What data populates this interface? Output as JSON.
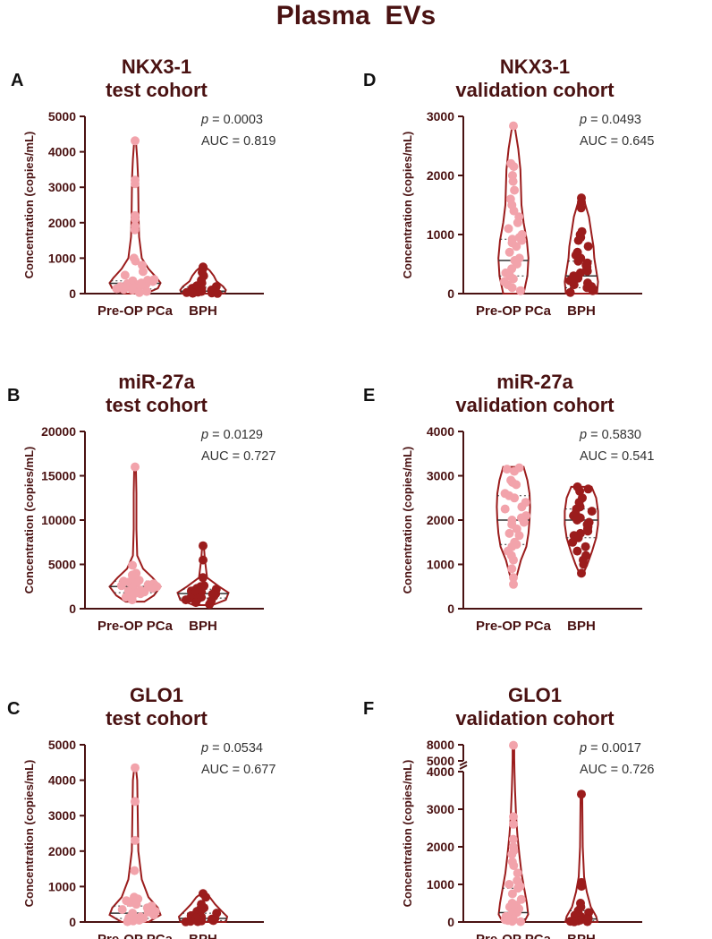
{
  "figure_title": "Plasma  EVs",
  "colors": {
    "dark": "#9b1c1c",
    "light": "#f2a3ab",
    "axis": "#4a1212"
  },
  "chart_data": [
    {
      "label": "A",
      "title_line1": "NKX3-1",
      "title_line2": "test cohort",
      "type": "violin",
      "ylabel": "Concentration (copies/mL)",
      "ylim": [
        0,
        5000
      ],
      "yticks": [
        "0",
        "1000",
        "2000",
        "3000",
        "4000",
        "5000"
      ],
      "categories": [
        "Pre-OP PCa",
        "BPH"
      ],
      "p_label": "p",
      "p_value": " = 0.0003",
      "auc_text": "AUC = 0.819",
      "series": [
        {
          "name": "Pre-OP PCa",
          "color": "light",
          "median": 290,
          "q1": 130,
          "q3": 360,
          "violin": [
            [
              0,
              40
            ],
            [
              150,
              85
            ],
            [
              300,
              95
            ],
            [
              450,
              80
            ],
            [
              700,
              50
            ],
            [
              1000,
              25
            ],
            [
              1600,
              15
            ],
            [
              2200,
              13
            ],
            [
              2800,
              12
            ],
            [
              3300,
              11
            ],
            [
              3800,
              8
            ],
            [
              4320,
              3
            ]
          ],
          "values": [
            4310,
            3200,
            3100,
            2200,
            2100,
            1900,
            1800,
            1000,
            920,
            800,
            620,
            520,
            400,
            380,
            360,
            340,
            320,
            300,
            280,
            260,
            250,
            240,
            220,
            200,
            180,
            160,
            140,
            120,
            100,
            60,
            30
          ]
        },
        {
          "name": "BPH",
          "color": "dark",
          "median": 70,
          "q1": 30,
          "q3": 180,
          "violin": [
            [
              0,
              80
            ],
            [
              100,
              85
            ],
            [
              200,
              75
            ],
            [
              350,
              50
            ],
            [
              500,
              40
            ],
            [
              650,
              25
            ],
            [
              780,
              5
            ]
          ],
          "values": [
            750,
            720,
            600,
            500,
            380,
            300,
            220,
            200,
            180,
            150,
            140,
            120,
            110,
            100,
            90,
            80,
            70,
            60,
            50,
            40,
            30,
            20,
            10,
            5
          ]
        }
      ]
    },
    {
      "label": "D",
      "title_line1": "NKX3-1",
      "title_line2": "validation cohort",
      "type": "violin",
      "ylabel": "Concentration (copies/mL)",
      "ylim": [
        0,
        3000
      ],
      "yticks": [
        "0",
        "1000",
        "2000",
        "3000"
      ],
      "categories": [
        "Pre-OP PCa",
        "BPH"
      ],
      "p_label": "p",
      "p_value": " = 0.0493",
      "auc_text": "AUC = 0.645",
      "series": [
        {
          "name": "Pre-OP PCa",
          "color": "light",
          "median": 560,
          "q1": 300,
          "q3": 920,
          "violin": [
            [
              0,
              38
            ],
            [
              300,
              52
            ],
            [
              600,
              56
            ],
            [
              900,
              50
            ],
            [
              1200,
              38
            ],
            [
              1500,
              30
            ],
            [
              1800,
              28
            ],
            [
              2100,
              26
            ],
            [
              2450,
              18
            ],
            [
              2850,
              4
            ]
          ],
          "values": [
            2840,
            2200,
            2150,
            2000,
            1900,
            1750,
            1600,
            1500,
            1400,
            1300,
            1200,
            1100,
            1000,
            950,
            920,
            900,
            860,
            800,
            700,
            600,
            560,
            500,
            420,
            350,
            300,
            250,
            200,
            150,
            100,
            50
          ]
        },
        {
          "name": "BPH",
          "color": "dark",
          "median": 300,
          "q1": 100,
          "q3": 550,
          "violin": [
            [
              0,
              58
            ],
            [
              200,
              62
            ],
            [
              400,
              55
            ],
            [
              600,
              48
            ],
            [
              800,
              45
            ],
            [
              1000,
              38
            ],
            [
              1300,
              28
            ],
            [
              1550,
              12
            ],
            [
              1650,
              3
            ]
          ],
          "values": [
            1620,
            1550,
            1450,
            1050,
            1000,
            950,
            900,
            800,
            700,
            650,
            600,
            550,
            520,
            480,
            450,
            420,
            380,
            350,
            300,
            260,
            220,
            180,
            150,
            120,
            100,
            80,
            50,
            20
          ]
        }
      ]
    },
    {
      "label": "B",
      "title_line1": "miR-27a",
      "title_line2": "test cohort",
      "type": "violin",
      "ylabel": "Concentration (copies/mL)",
      "ylim": [
        0,
        20000
      ],
      "yticks": [
        "0",
        "5000",
        "10000",
        "15000",
        "20000"
      ],
      "categories": [
        "Pre-OP PCa",
        "BPH"
      ],
      "p_label": "p",
      "p_value": " = 0.0129",
      "auc_text": "AUC = 0.727",
      "series": [
        {
          "name": "Pre-OP PCa",
          "color": "light",
          "median": 2500,
          "q1": 1800,
          "q3": 3100,
          "violin": [
            [
              800,
              35
            ],
            [
              1500,
              70
            ],
            [
              2500,
              95
            ],
            [
              3500,
              65
            ],
            [
              4500,
              30
            ],
            [
              6000,
              8
            ],
            [
              9000,
              5
            ],
            [
              13000,
              5
            ],
            [
              16100,
              3
            ]
          ],
          "values": [
            16000,
            4900,
            4000,
            3800,
            3600,
            3200,
            3100,
            3000,
            2900,
            2800,
            2700,
            2600,
            2500,
            2450,
            2400,
            2300,
            2200,
            2100,
            2000,
            1900,
            1800,
            1700,
            1500,
            1300,
            1000
          ]
        },
        {
          "name": "BPH",
          "color": "dark",
          "median": 1700,
          "q1": 1200,
          "q3": 2200,
          "violin": [
            [
              400,
              35
            ],
            [
              1000,
              85
            ],
            [
              1800,
              95
            ],
            [
              2500,
              60
            ],
            [
              3500,
              15
            ],
            [
              5500,
              7
            ],
            [
              7100,
              3
            ]
          ],
          "values": [
            7100,
            5500,
            3500,
            2600,
            2500,
            2400,
            2300,
            2200,
            2100,
            2000,
            1900,
            1800,
            1700,
            1650,
            1600,
            1500,
            1400,
            1300,
            1200,
            1100,
            1000,
            900,
            700,
            500
          ]
        }
      ]
    },
    {
      "label": "E",
      "title_line1": "miR-27a",
      "title_line2": "validation cohort",
      "type": "violin",
      "ylabel": "Concentration (copies/mL)",
      "ylim": [
        0,
        4000
      ],
      "yticks": [
        "0",
        "1000",
        "2000",
        "3000",
        "4000"
      ],
      "categories": [
        "Pre-OP PCa",
        "BPH"
      ],
      "p_label": "p",
      "p_value": " = 0.5830",
      "auc_text": "AUC = 0.541",
      "series": [
        {
          "name": "Pre-OP PCa",
          "color": "light",
          "median": 2000,
          "q1": 1450,
          "q3": 2550,
          "violin": [
            [
              520,
              3
            ],
            [
              800,
              15
            ],
            [
              1100,
              28
            ],
            [
              1400,
              48
            ],
            [
              1700,
              56
            ],
            [
              2000,
              60
            ],
            [
              2300,
              62
            ],
            [
              2600,
              60
            ],
            [
              2900,
              52
            ],
            [
              3200,
              38
            ]
          ],
          "values": [
            3180,
            3150,
            3100,
            2900,
            2850,
            2800,
            2600,
            2550,
            2500,
            2400,
            2300,
            2250,
            2100,
            2050,
            2000,
            1950,
            1900,
            1800,
            1700,
            1650,
            1500,
            1450,
            1400,
            1300,
            1200,
            1100,
            900,
            700,
            550
          ]
        },
        {
          "name": "BPH",
          "color": "dark",
          "median": 2000,
          "q1": 1600,
          "q3": 2250,
          "violin": [
            [
              750,
              4
            ],
            [
              1000,
              22
            ],
            [
              1300,
              40
            ],
            [
              1600,
              55
            ],
            [
              1900,
              62
            ],
            [
              2200,
              62
            ],
            [
              2500,
              55
            ],
            [
              2750,
              38
            ]
          ],
          "values": [
            2750,
            2700,
            2650,
            2500,
            2400,
            2300,
            2250,
            2200,
            2150,
            2100,
            2050,
            2000,
            1950,
            1900,
            1850,
            1800,
            1750,
            1700,
            1650,
            1600,
            1500,
            1400,
            1300,
            1200,
            1100,
            1000,
            800
          ]
        }
      ]
    },
    {
      "label": "C",
      "title_line1": "GLO1",
      "title_line2": "test cohort",
      "type": "violin",
      "ylabel": "Concentration (copies/mL)",
      "ylim": [
        0,
        5000
      ],
      "yticks": [
        "0",
        "1000",
        "2000",
        "3000",
        "4000",
        "5000"
      ],
      "categories": [
        "Pre-OP PCa",
        "BPH"
      ],
      "p_label": "p",
      "p_value": " = 0.0534",
      "auc_text": "AUC = 0.677",
      "series": [
        {
          "name": "Pre-OP PCa",
          "color": "light",
          "median": 250,
          "q1": 100,
          "q3": 450,
          "violin": [
            [
              0,
              50
            ],
            [
              200,
              95
            ],
            [
              400,
              85
            ],
            [
              700,
              50
            ],
            [
              1200,
              25
            ],
            [
              2000,
              12
            ],
            [
              3000,
              10
            ],
            [
              4000,
              8
            ],
            [
              4350,
              3
            ]
          ],
          "values": [
            4350,
            3400,
            2300,
            1450,
            700,
            650,
            600,
            550,
            500,
            450,
            400,
            350,
            300,
            280,
            250,
            200,
            180,
            150,
            120,
            100,
            80,
            50,
            30,
            10
          ]
        },
        {
          "name": "BPH",
          "color": "dark",
          "median": 100,
          "q1": 40,
          "q3": 250,
          "violin": [
            [
              0,
              85
            ],
            [
              150,
              90
            ],
            [
              300,
              70
            ],
            [
              500,
              45
            ],
            [
              700,
              25
            ],
            [
              820,
              4
            ]
          ],
          "values": [
            800,
            700,
            500,
            400,
            380,
            350,
            300,
            250,
            200,
            180,
            150,
            120,
            100,
            80,
            60,
            50,
            40,
            30,
            20,
            10,
            5
          ]
        }
      ]
    },
    {
      "label": "F",
      "title_line1": "GLO1",
      "title_line2": "validation cohort",
      "type": "violin",
      "ylabel": "Concentration (copies/mL)",
      "ylim": [
        0,
        8000
      ],
      "yticks": [
        "0",
        "1000",
        "2000",
        "3000",
        "4000",
        "5000",
        "8000"
      ],
      "axis_break": [
        4000,
        5000
      ],
      "categories": [
        "Pre-OP PCa",
        "BPH"
      ],
      "p_label": "p",
      "p_value": " = 0.0017",
      "auc_text": "AUC = 0.726",
      "series": [
        {
          "name": "Pre-OP PCa",
          "color": "light",
          "median": 250,
          "q1": 80,
          "q3": 900,
          "violin": [
            [
              0,
              40
            ],
            [
              200,
              55
            ],
            [
              500,
              50
            ],
            [
              900,
              40
            ],
            [
              1300,
              30
            ],
            [
              1800,
              22
            ],
            [
              2300,
              15
            ],
            [
              2800,
              10
            ],
            [
              3500,
              6
            ],
            [
              4000,
              4
            ],
            [
              5500,
              3
            ],
            [
              7900,
              3
            ]
          ],
          "values": [
            7900,
            2800,
            2600,
            2200,
            2000,
            1900,
            1800,
            1600,
            1500,
            1300,
            1100,
            1000,
            950,
            900,
            750,
            600,
            500,
            450,
            400,
            350,
            300,
            250,
            200,
            150,
            100,
            80,
            60,
            40,
            20,
            10
          ]
        },
        {
          "name": "BPH",
          "color": "dark",
          "median": 80,
          "q1": 30,
          "q3": 300,
          "violin": [
            [
              0,
              60
            ],
            [
              150,
              55
            ],
            [
              400,
              35
            ],
            [
              800,
              20
            ],
            [
              1200,
              10
            ],
            [
              2000,
              5
            ],
            [
              3400,
              3
            ]
          ],
          "values": [
            3400,
            1050,
            1000,
            950,
            500,
            400,
            300,
            250,
            200,
            180,
            150,
            120,
            100,
            90,
            80,
            70,
            60,
            50,
            40,
            30,
            20,
            10,
            5
          ]
        }
      ]
    }
  ]
}
